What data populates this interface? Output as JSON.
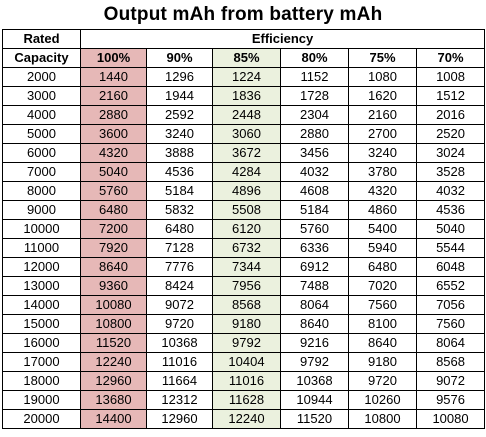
{
  "title": "Output mAh from battery mAh",
  "header": {
    "rated_line1": "Rated",
    "rated_line2": "Capacity",
    "efficiency_label": "Efficiency",
    "efficiencies": [
      "100%",
      "90%",
      "85%",
      "80%",
      "75%",
      "70%"
    ]
  },
  "colors": {
    "highlight_100": "#e6b8b7",
    "highlight_85": "#ebf1de",
    "grid_line": "#000000"
  },
  "rows": [
    {
      "capacity": "2000",
      "values": [
        "1440",
        "1296",
        "1224",
        "1152",
        "1080",
        "1008"
      ]
    },
    {
      "capacity": "3000",
      "values": [
        "2160",
        "1944",
        "1836",
        "1728",
        "1620",
        "1512"
      ]
    },
    {
      "capacity": "4000",
      "values": [
        "2880",
        "2592",
        "2448",
        "2304",
        "2160",
        "2016"
      ]
    },
    {
      "capacity": "5000",
      "values": [
        "3600",
        "3240",
        "3060",
        "2880",
        "2700",
        "2520"
      ]
    },
    {
      "capacity": "6000",
      "values": [
        "4320",
        "3888",
        "3672",
        "3456",
        "3240",
        "3024"
      ]
    },
    {
      "capacity": "7000",
      "values": [
        "5040",
        "4536",
        "4284",
        "4032",
        "3780",
        "3528"
      ]
    },
    {
      "capacity": "8000",
      "values": [
        "5760",
        "5184",
        "4896",
        "4608",
        "4320",
        "4032"
      ]
    },
    {
      "capacity": "9000",
      "values": [
        "6480",
        "5832",
        "5508",
        "5184",
        "4860",
        "4536"
      ]
    },
    {
      "capacity": "10000",
      "values": [
        "7200",
        "6480",
        "6120",
        "5760",
        "5400",
        "5040"
      ]
    },
    {
      "capacity": "11000",
      "values": [
        "7920",
        "7128",
        "6732",
        "6336",
        "5940",
        "5544"
      ]
    },
    {
      "capacity": "12000",
      "values": [
        "8640",
        "7776",
        "7344",
        "6912",
        "6480",
        "6048"
      ]
    },
    {
      "capacity": "13000",
      "values": [
        "9360",
        "8424",
        "7956",
        "7488",
        "7020",
        "6552"
      ]
    },
    {
      "capacity": "14000",
      "values": [
        "10080",
        "9072",
        "8568",
        "8064",
        "7560",
        "7056"
      ]
    },
    {
      "capacity": "15000",
      "values": [
        "10800",
        "9720",
        "9180",
        "8640",
        "8100",
        "7560"
      ]
    },
    {
      "capacity": "16000",
      "values": [
        "11520",
        "10368",
        "9792",
        "9216",
        "8640",
        "8064"
      ]
    },
    {
      "capacity": "17000",
      "values": [
        "12240",
        "11016",
        "10404",
        "9792",
        "9180",
        "8568"
      ]
    },
    {
      "capacity": "18000",
      "values": [
        "12960",
        "11664",
        "11016",
        "10368",
        "9720",
        "9072"
      ]
    },
    {
      "capacity": "19000",
      "values": [
        "13680",
        "12312",
        "11628",
        "10944",
        "10260",
        "9576"
      ]
    },
    {
      "capacity": "20000",
      "values": [
        "14400",
        "12960",
        "12240",
        "11520",
        "10800",
        "10080"
      ]
    }
  ]
}
